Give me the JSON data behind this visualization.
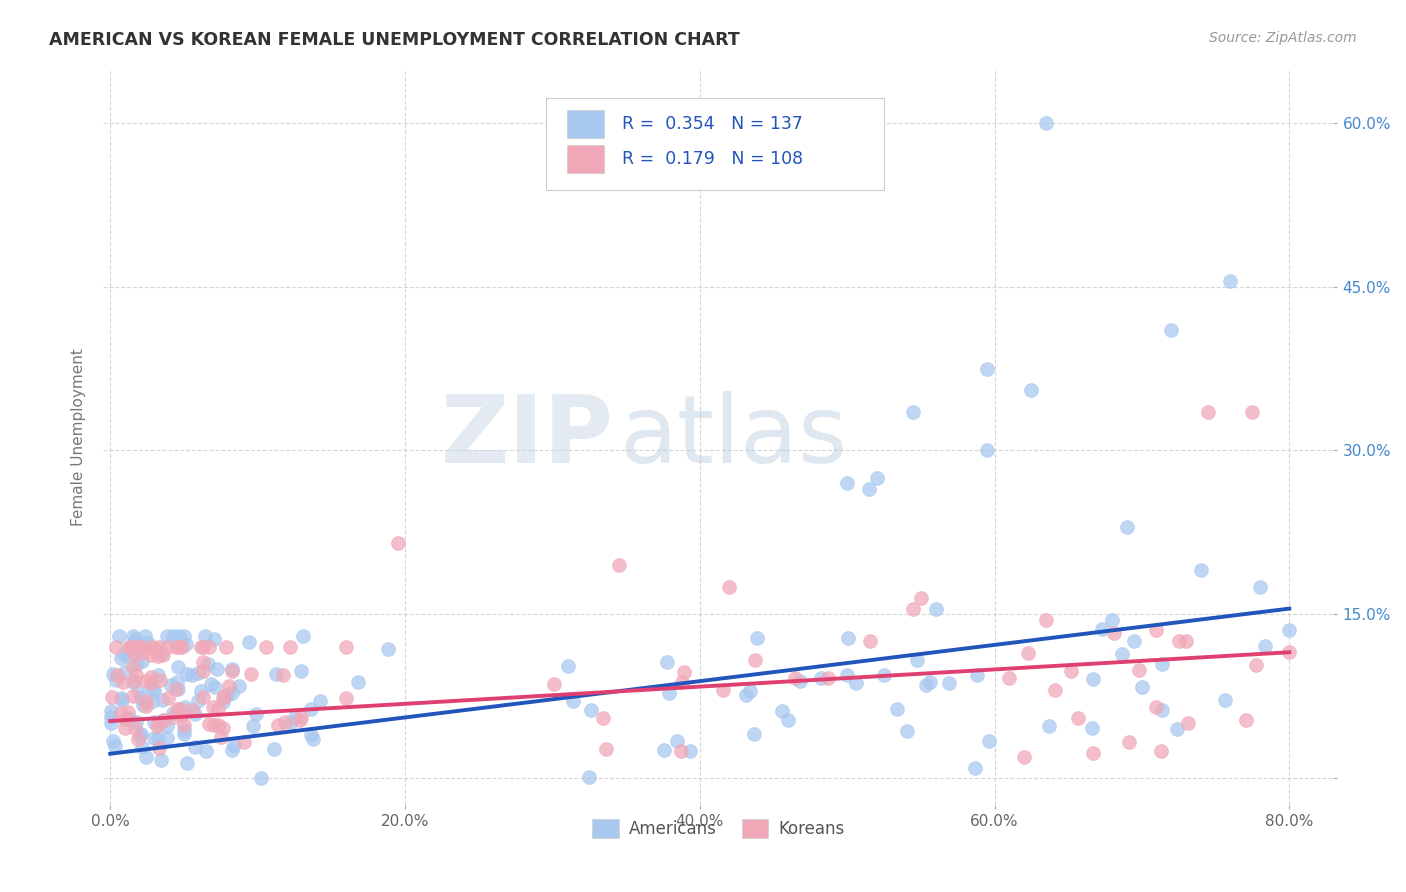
{
  "title": "AMERICAN VS KOREAN FEMALE UNEMPLOYMENT CORRELATION CHART",
  "source": "Source: ZipAtlas.com",
  "ylabel": "Female Unemployment",
  "ytick_labels": [
    "",
    "15.0%",
    "30.0%",
    "45.0%",
    "60.0%"
  ],
  "ytick_values": [
    0.0,
    0.15,
    0.3,
    0.45,
    0.6
  ],
  "xtick_labels": [
    "0.0%",
    "20.0%",
    "40.0%",
    "60.0%",
    "80.0%"
  ],
  "xtick_values": [
    0.0,
    0.2,
    0.4,
    0.6,
    0.8
  ],
  "xlim": [
    -0.005,
    0.83
  ],
  "ylim": [
    -0.025,
    0.65
  ],
  "legend_r_american": "0.354",
  "legend_n_american": "137",
  "legend_r_korean": "0.179",
  "legend_n_korean": "108",
  "legend_label_american": "Americans",
  "legend_label_korean": "Koreans",
  "american_color": "#a8c8f0",
  "korean_color": "#f0a8b8",
  "trendline_american_color": "#2255bb",
  "trendline_korean_color": "#e04070",
  "watermark_zip": "ZIP",
  "watermark_atlas": "atlas",
  "background_color": "#ffffff",
  "trendline_am_x0": 0.0,
  "trendline_am_y0": 0.022,
  "trendline_am_x1": 0.8,
  "trendline_am_y1": 0.155,
  "trendline_ko_x0": 0.0,
  "trendline_ko_y0": 0.052,
  "trendline_ko_x1": 0.8,
  "trendline_ko_y1": 0.115
}
